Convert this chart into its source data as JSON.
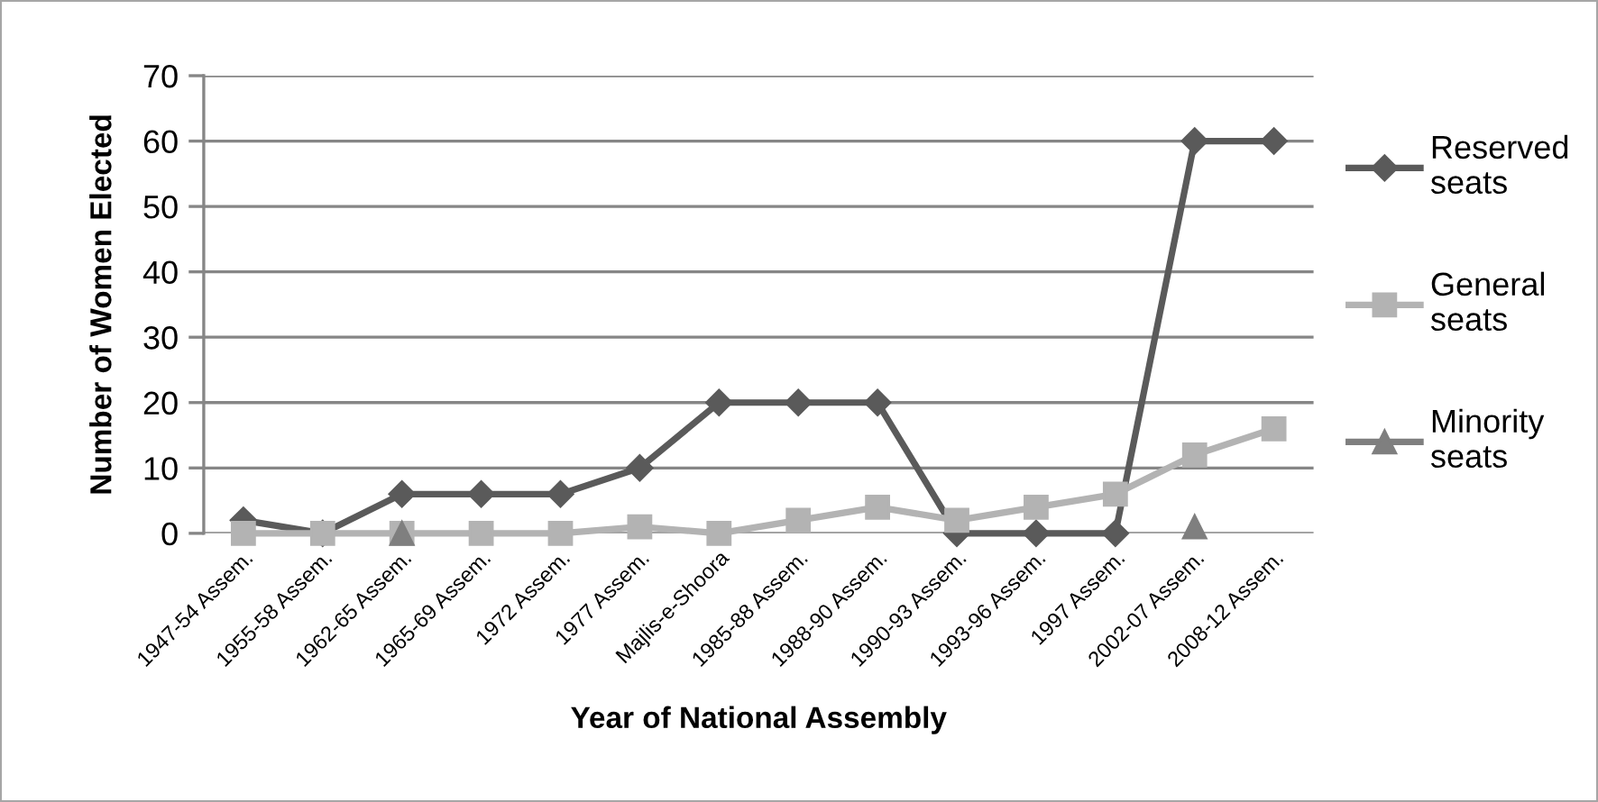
{
  "chart_data": {
    "type": "line",
    "xlabel": "Year of National Assembly",
    "ylabel": "Number of Women Elected",
    "categories": [
      "1947-54 Assem.",
      "1955-58 Assem.",
      "1962-65 Assem.",
      "1965-69 Assem.",
      "1972 Assem.",
      "1977 Assem.",
      "Majlis-e-Shoora",
      "1985-88 Assem.",
      "1988-90 Assem.",
      "1990-93 Assem.",
      "1993-96 Assem.",
      "1997 Assem.",
      "2002-07 Assem.",
      "2008-12 Assem."
    ],
    "series": [
      {
        "name": "Reserved seats",
        "color": "#5a5a5a",
        "marker": "diamond",
        "values": [
          2,
          0,
          6,
          6,
          6,
          10,
          20,
          20,
          20,
          0,
          0,
          0,
          60,
          60
        ]
      },
      {
        "name": "General seats",
        "color": "#b3b3b3",
        "marker": "square",
        "values": [
          0,
          0,
          0,
          0,
          0,
          1,
          0,
          2,
          4,
          2,
          4,
          6,
          12,
          16
        ]
      },
      {
        "name": "Minority seats",
        "type": "scatter",
        "color": "#7f7f7f",
        "marker": "triangle",
        "values": [
          null,
          null,
          0,
          null,
          null,
          null,
          null,
          null,
          null,
          null,
          null,
          null,
          1,
          null
        ]
      }
    ],
    "ylim": [
      0,
      70
    ],
    "yticks": [
      0,
      10,
      20,
      30,
      40,
      50,
      60,
      70
    ],
    "grid": "y",
    "legend": "right",
    "line_style": "solid"
  }
}
